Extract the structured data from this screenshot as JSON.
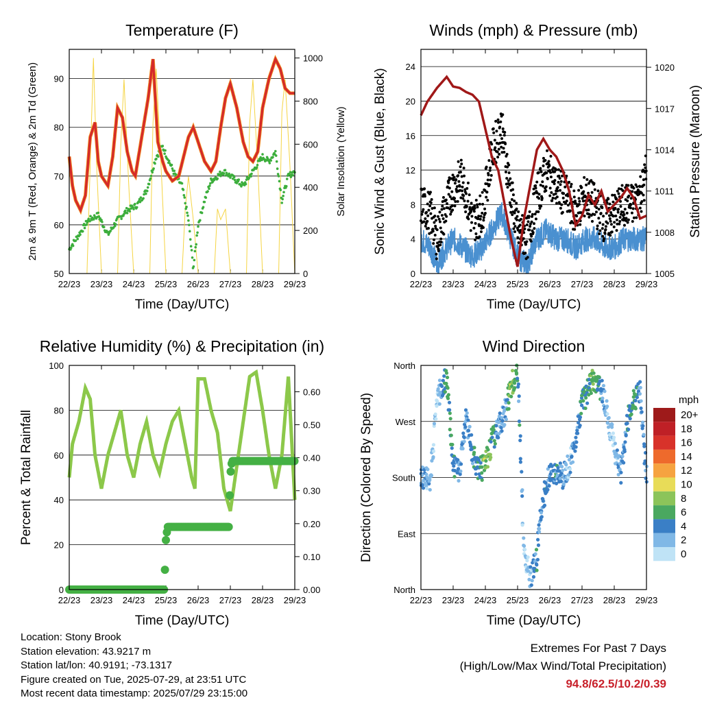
{
  "time_ticks": [
    "22/23",
    "23/23",
    "24/23",
    "25/23",
    "26/23",
    "27/23",
    "28/23",
    "29/23"
  ],
  "info": {
    "location": "Location: Stony Brook",
    "elevation": "Station elevation: 43.9217 m",
    "latlon": "Station lat/lon: 40.9191; -73.1317",
    "created": "Figure created on Tue, 2025-07-29, at 23:51 UTC",
    "recent": "Most recent data timestamp: 2025/07/29 23:15:00"
  },
  "extremes": {
    "line1": "Extremes For Past 7 Days",
    "line2": "(High/Low/Max Wind/Total Precipitation)",
    "values": "94.8/62.5/10.2/0.39"
  },
  "chart_data": [
    {
      "type": "line",
      "title": "Temperature (F)",
      "xlabel": "Time (Day/UTC)",
      "ylabel": "2m & 9m T (Red, Orange) & 2m Td (Green)",
      "y2label": "Solar Insolation (Yellow)",
      "ylim": [
        50,
        96
      ],
      "y2lim": [
        0,
        1040
      ],
      "yticks": [
        50,
        60,
        70,
        80,
        90
      ],
      "y2ticks": [
        0,
        200,
        400,
        600,
        800,
        1000
      ],
      "colors": {
        "temp": "#d42a2a",
        "temp9m": "#f08a1e",
        "dewpoint": "#3cae3c",
        "solar": "#f5d442"
      },
      "series": [
        {
          "name": "2m T",
          "x": [
            0,
            0.1,
            0.2,
            0.35,
            0.5,
            0.65,
            0.8,
            0.9,
            1.0,
            1.2,
            1.35,
            1.5,
            1.65,
            1.8,
            1.95,
            2.05,
            2.25,
            2.45,
            2.6,
            2.75,
            2.9,
            3.0,
            3.2,
            3.4,
            3.55,
            3.7,
            3.85,
            4.0,
            4.2,
            4.4,
            4.55,
            4.7,
            4.85,
            5.0,
            5.2,
            5.4,
            5.55,
            5.7,
            5.85,
            6.0,
            6.2,
            6.4,
            6.55,
            6.7,
            6.85,
            7.0
          ],
          "values": [
            74,
            68,
            65,
            63,
            66,
            78,
            81,
            73,
            70,
            68,
            74,
            84,
            82,
            75,
            71,
            70,
            78,
            86,
            94,
            77,
            73,
            71,
            69,
            70,
            74,
            78,
            80,
            77,
            73,
            71,
            73,
            80,
            86,
            89,
            84,
            77,
            74,
            73,
            75,
            84,
            90,
            94,
            92,
            88,
            87,
            87
          ]
        },
        {
          "name": "2m Td",
          "x": [
            0,
            0.3,
            0.6,
            0.9,
            1.2,
            1.5,
            1.8,
            2.1,
            2.4,
            2.7,
            2.9,
            3.1,
            3.3,
            3.5,
            3.7,
            3.85,
            4.0,
            4.2,
            4.4,
            4.6,
            4.8,
            5.0,
            5.2,
            5.4,
            5.6,
            5.8,
            6.0,
            6.2,
            6.4,
            6.6,
            6.8,
            7.0
          ],
          "values": [
            55,
            58,
            61,
            62,
            58,
            61,
            63,
            64,
            67,
            74,
            76,
            73,
            70,
            68,
            61,
            51,
            60,
            65,
            69,
            70,
            71,
            70,
            69,
            68,
            70,
            72,
            74,
            73,
            75,
            65,
            70,
            71
          ]
        },
        {
          "name": "Solar",
          "x": [
            0,
            0.55,
            0.65,
            0.75,
            0.85,
            1.0,
            1.5,
            1.6,
            1.7,
            1.85,
            2.0,
            2.5,
            2.6,
            2.7,
            2.85,
            3.0,
            3.5,
            3.6,
            3.7,
            3.85,
            4.0,
            4.5,
            4.6,
            4.7,
            4.85,
            5.0,
            5.5,
            5.6,
            5.7,
            5.85,
            6.0,
            6.5,
            6.6,
            6.7,
            6.85,
            7.0
          ],
          "values": [
            0,
            0,
            500,
            1000,
            500,
            0,
            0,
            600,
            900,
            400,
            0,
            0,
            700,
            950,
            500,
            0,
            0,
            300,
            450,
            250,
            0,
            0,
            300,
            250,
            300,
            0,
            0,
            700,
            900,
            500,
            0,
            0,
            750,
            900,
            500,
            0
          ]
        }
      ]
    },
    {
      "type": "scatter",
      "title": "Winds (mph) & Pressure (mb)",
      "xlabel": "Time (Day/UTC)",
      "ylabel": "Sonic Wind & Gust (Blue, Black)",
      "y2label": "Station Pressure (Maroon)",
      "ylim": [
        0,
        26
      ],
      "y2lim": [
        1005,
        1021.3
      ],
      "yticks": [
        0,
        4,
        8,
        12,
        16,
        20,
        24
      ],
      "y2ticks": [
        1005,
        1008,
        1011,
        1014,
        1017,
        1020
      ],
      "colors": {
        "wind": "#4a90d0",
        "gust": "#000000",
        "pressure": "#a01818"
      },
      "series": [
        {
          "name": "Wind",
          "x": [
            0,
            0.3,
            0.5,
            0.8,
            1.0,
            1.3,
            1.6,
            1.9,
            2.2,
            2.5,
            2.8,
            3.0,
            3.3,
            3.6,
            3.9,
            4.2,
            4.5,
            4.8,
            5.1,
            5.4,
            5.7,
            6.0,
            6.3,
            6.6,
            6.9,
            7.0
          ],
          "values": [
            4,
            3,
            1,
            3,
            4,
            3,
            2,
            3,
            5,
            7,
            4,
            2,
            1,
            4,
            5,
            4,
            4,
            3,
            4,
            4,
            3,
            3,
            4,
            4,
            4,
            4
          ]
        },
        {
          "name": "Gust",
          "x": [
            0,
            0.3,
            0.5,
            0.8,
            1.0,
            1.3,
            1.6,
            1.9,
            2.2,
            2.5,
            2.8,
            3.0,
            3.3,
            3.6,
            3.9,
            4.2,
            4.5,
            4.8,
            5.1,
            5.4,
            5.7,
            6.0,
            6.3,
            6.6,
            6.9,
            7.0
          ],
          "values": [
            8,
            7,
            4,
            8,
            10,
            11,
            6,
            7,
            14,
            17,
            9,
            5,
            4,
            9,
            12,
            10,
            9,
            7,
            9,
            8,
            6,
            7,
            8,
            8,
            10,
            12
          ]
        },
        {
          "name": "Pressure",
          "x": [
            0,
            0.2,
            0.5,
            0.8,
            1.0,
            1.2,
            1.4,
            1.6,
            1.8,
            2.0,
            2.2,
            2.4,
            2.6,
            2.8,
            3.0,
            3.2,
            3.4,
            3.6,
            3.8,
            4.0,
            4.2,
            4.4,
            4.6,
            4.8,
            5.0,
            5.2,
            5.4,
            5.6,
            5.8,
            6.0,
            6.2,
            6.4,
            6.6,
            6.8,
            7.0
          ],
          "values": [
            1016.5,
            1017.5,
            1018.5,
            1019.3,
            1018.6,
            1018.5,
            1018.2,
            1018.0,
            1017.5,
            1015.5,
            1013.5,
            1012.5,
            1010.0,
            1007.5,
            1005.5,
            1009.0,
            1011.5,
            1014.0,
            1014.8,
            1014.0,
            1013.5,
            1012.5,
            1011.0,
            1008.5,
            1009.2,
            1010.7,
            1010.0,
            1011.0,
            1009.5,
            1010.0,
            1010.5,
            1011.2,
            1010.5,
            1009.0,
            1009.2
          ]
        }
      ]
    },
    {
      "type": "line",
      "title": "Relative Humidity (%) & Precipitation (in)",
      "xlabel": "Time (Day/UTC)",
      "ylabel": "Percent & Total Rainfall",
      "ylim": [
        0,
        100
      ],
      "y2lim": [
        0,
        0.68
      ],
      "yticks": [
        0,
        20,
        40,
        60,
        80,
        100
      ],
      "y2ticks": [
        0.0,
        0.1,
        0.2,
        0.3,
        0.4,
        0.5,
        0.6
      ],
      "colors": {
        "rh": "#8cc84a",
        "precip": "#44b044"
      },
      "series": [
        {
          "name": "RH",
          "x": [
            0,
            0.1,
            0.3,
            0.5,
            0.65,
            0.8,
            1.0,
            1.2,
            1.4,
            1.6,
            1.8,
            2.0,
            2.2,
            2.4,
            2.6,
            2.8,
            3.0,
            3.2,
            3.4,
            3.6,
            3.8,
            3.9,
            4.0,
            4.2,
            4.4,
            4.6,
            4.8,
            5.0,
            5.2,
            5.4,
            5.6,
            5.8,
            6.0,
            6.2,
            6.4,
            6.6,
            6.8,
            7.0
          ],
          "values": [
            50,
            65,
            75,
            90,
            85,
            60,
            45,
            60,
            70,
            80,
            60,
            50,
            65,
            75,
            60,
            52,
            65,
            75,
            80,
            65,
            50,
            45,
            94,
            94,
            80,
            70,
            45,
            35,
            55,
            75,
            95,
            97,
            80,
            60,
            45,
            60,
            95,
            40
          ]
        },
        {
          "name": "Precipitation",
          "x": [
            0,
            2.95,
            3.0,
            3.05,
            4.95,
            5.0,
            5.05,
            7.0
          ],
          "values": [
            0,
            0,
            0.15,
            0.19,
            0.19,
            0.35,
            0.39,
            0.39
          ]
        }
      ]
    },
    {
      "type": "scatter",
      "title": "Wind Direction",
      "xlabel": "Time (Day/UTC)",
      "ylabel": "Direction (Colored By Speed)",
      "ylim": [
        0,
        360
      ],
      "ytick_labels": [
        "North",
        "East",
        "South",
        "West",
        "North"
      ],
      "colorbar": {
        "unit": "mph",
        "labels": [
          "20+",
          "18",
          "16",
          "14",
          "12",
          "10",
          "8",
          "6",
          "4",
          "2",
          "0"
        ],
        "colors": [
          "#9e1a1a",
          "#bf2026",
          "#d8322a",
          "#ee6a2c",
          "#f6a340",
          "#e8dc58",
          "#8cc45a",
          "#4aa860",
          "#3a7fc6",
          "#80b8e6",
          "#bfe3f6"
        ]
      },
      "series": [
        {
          "name": "Direction",
          "x": [
            0,
            0.3,
            0.5,
            0.6,
            0.8,
            1.0,
            1.2,
            1.4,
            1.6,
            1.8,
            2.0,
            2.2,
            2.4,
            2.6,
            2.8,
            3.0,
            3.2,
            3.4,
            3.6,
            3.7,
            3.9,
            4.0,
            4.2,
            4.4,
            4.6,
            4.8,
            5.0,
            5.2,
            5.4,
            5.6,
            5.8,
            6.0,
            6.2,
            6.4,
            6.6,
            6.8,
            7.0
          ],
          "values": [
            180,
            180,
            300,
            320,
            340,
            200,
            190,
            280,
            220,
            190,
            200,
            240,
            260,
            280,
            330,
            350,
            60,
            20,
            50,
            120,
            170,
            180,
            190,
            180,
            200,
            240,
            300,
            320,
            340,
            320,
            280,
            230,
            190,
            270,
            300,
            320,
            180
          ],
          "speeds": [
            3,
            2,
            1,
            2,
            6,
            4,
            3,
            3,
            4,
            5,
            8,
            6,
            3,
            2,
            8,
            5,
            1,
            2,
            4,
            3,
            4,
            3,
            4,
            3,
            2,
            3,
            5,
            6,
            7,
            3,
            2,
            1,
            3,
            4,
            6,
            3,
            4
          ]
        }
      ]
    }
  ]
}
